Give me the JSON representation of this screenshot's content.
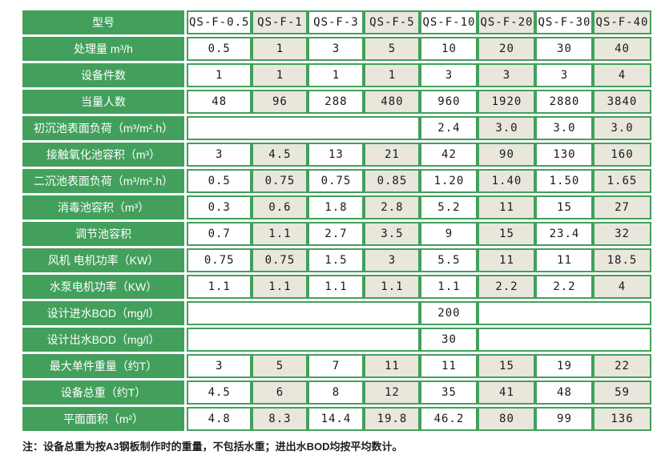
{
  "colors": {
    "green": "#42A05C",
    "alt_column": "#E9E6DC",
    "cell_white": "#FFFFFF",
    "text": "#1A1A1A"
  },
  "table": {
    "header": {
      "label": "型号",
      "models": [
        "QS-F-0.5",
        "QS-F-1",
        "QS-F-3",
        "QS-F-5",
        "QS-F-10",
        "QS-F-20",
        "QS-F-30",
        "QS-F-40"
      ]
    },
    "rows": [
      {
        "label": "处理量 m³/h",
        "values": [
          "0.5",
          "1",
          "3",
          "5",
          "10",
          "20",
          "30",
          "40"
        ]
      },
      {
        "label": "设备件数",
        "values": [
          "1",
          "1",
          "1",
          "1",
          "3",
          "3",
          "3",
          "4"
        ]
      },
      {
        "label": "当量人数",
        "values": [
          "48",
          "96",
          "288",
          "480",
          "960",
          "1920",
          "2880",
          "3840"
        ]
      },
      {
        "label": "初沉池表面负荷（m³/m².h）",
        "values": [
          "",
          "",
          "",
          "",
          "2.4",
          "3.0",
          "3.0",
          "3.0"
        ]
      },
      {
        "label": "接触氧化池容积（m³）",
        "values": [
          "3",
          "4.5",
          "13",
          "21",
          "42",
          "90",
          "130",
          "160"
        ]
      },
      {
        "label": "二沉池表面负荷（m³/m².h）",
        "values": [
          "0.5",
          "0.75",
          "0.75",
          "0.85",
          "1.20",
          "1.40",
          "1.50",
          "1.65"
        ]
      },
      {
        "label": "消毒池容积（m³）",
        "values": [
          "0.3",
          "0.6",
          "1.8",
          "2.8",
          "5.2",
          "11",
          "15",
          "27"
        ]
      },
      {
        "label": "调节池容积",
        "values": [
          "0.7",
          "1.1",
          "2.7",
          "3.5",
          "9",
          "15",
          "23.4",
          "32"
        ]
      },
      {
        "label": "风机 电机功率（KW）",
        "values": [
          "0.75",
          "0.75",
          "1.5",
          "3",
          "5.5",
          "11",
          "11",
          "18.5"
        ]
      },
      {
        "label": "水泵电机功率（KW）",
        "values": [
          "1.1",
          "1.1",
          "1.1",
          "1.1",
          "1.1",
          "2.2",
          "2.2",
          "4"
        ]
      },
      {
        "label": "设计进水BOD（mg/l）",
        "values": [
          "",
          "",
          "",
          "",
          "200",
          "",
          "",
          ""
        ]
      },
      {
        "label": "设计出水BOD（mg/l）",
        "values": [
          "",
          "",
          "",
          "",
          "30",
          "",
          "",
          ""
        ]
      },
      {
        "label": "最大单件重量（约T）",
        "values": [
          "3",
          "5",
          "7",
          "11",
          "11",
          "15",
          "19",
          "22"
        ]
      },
      {
        "label": "设备总重（约T）",
        "values": [
          "4.5",
          "6",
          "8",
          "12",
          "35",
          "41",
          "48",
          "59"
        ]
      },
      {
        "label": "平面面积（m²）",
        "values": [
          "4.8",
          "8.3",
          "14.4",
          "19.8",
          "46.2",
          "80",
          "99",
          "136"
        ]
      }
    ]
  },
  "note": "注：设备总重为按A3钢板制作时的重量，不包括水重；进出水BOD均按平均数计。"
}
